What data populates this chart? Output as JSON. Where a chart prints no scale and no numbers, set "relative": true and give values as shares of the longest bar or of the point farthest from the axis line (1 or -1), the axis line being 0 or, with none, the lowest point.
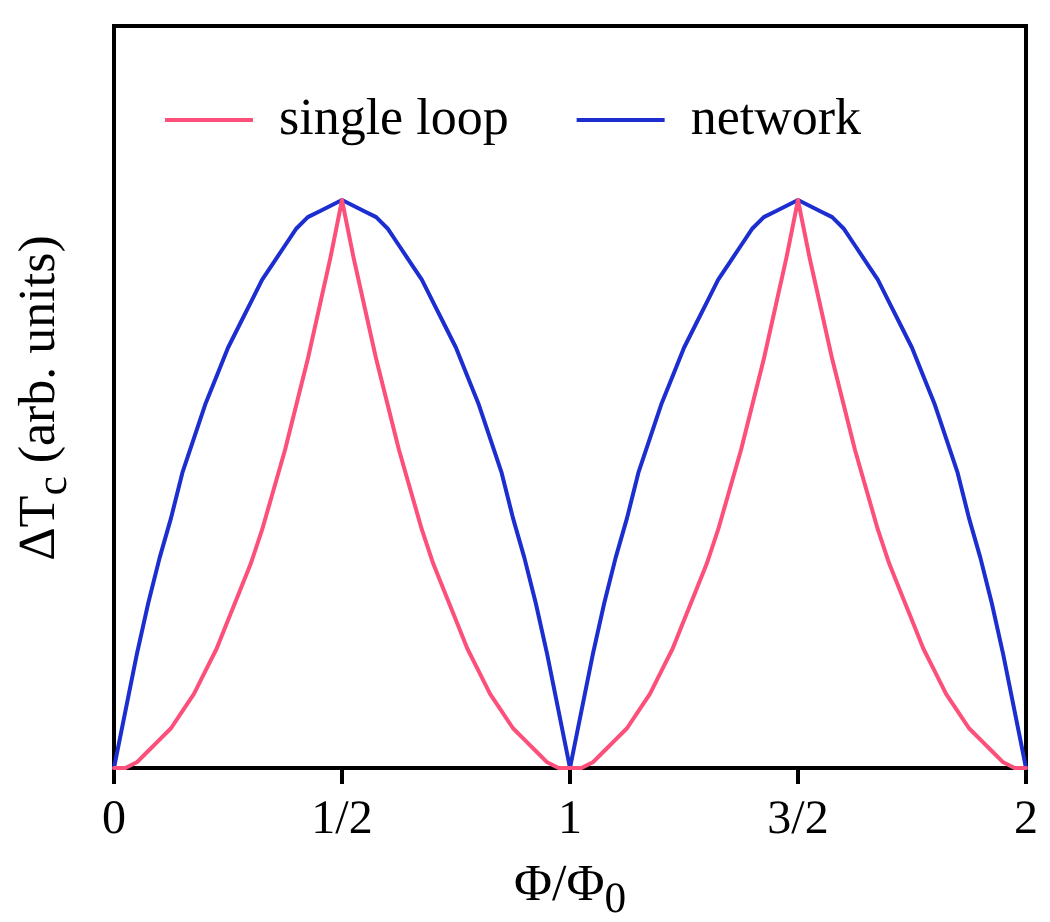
{
  "chart_data": {
    "type": "line",
    "xlabel": "Φ/Φ$_{0}$",
    "ylabel": "ΔT$_{c}$ (arb. units)",
    "relative": true,
    "x": [
      0,
      0.025,
      0.05,
      0.075,
      0.1,
      0.125,
      0.15,
      0.175,
      0.2,
      0.225,
      0.25,
      0.275,
      0.3,
      0.325,
      0.35,
      0.375,
      0.4,
      0.425,
      0.45,
      0.475,
      0.5,
      0.525,
      0.55,
      0.575,
      0.6,
      0.625,
      0.65,
      0.675,
      0.7,
      0.725,
      0.75,
      0.775,
      0.8,
      0.825,
      0.85,
      0.875,
      0.9,
      0.925,
      0.95,
      0.975,
      1,
      1.025,
      1.05,
      1.075,
      1.1,
      1.125,
      1.15,
      1.175,
      1.2,
      1.225,
      1.25,
      1.275,
      1.3,
      1.325,
      1.35,
      1.375,
      1.4,
      1.425,
      1.45,
      1.475,
      1.5,
      1.525,
      1.55,
      1.575,
      1.6,
      1.625,
      1.65,
      1.675,
      1.7,
      1.725,
      1.75,
      1.775,
      1.8,
      1.825,
      1.85,
      1.875,
      1.9,
      1.925,
      1.95,
      1.975,
      2
    ],
    "xlim": [
      0,
      2
    ],
    "xticks": [
      0,
      {
        "value": 0.5,
        "label": "1/2"
      },
      1,
      {
        "value": 1.5,
        "label": "3/2"
      },
      2
    ],
    "series": [
      {
        "name": "single loop",
        "color": "#fc4f7a",
        "values": [
          0,
          0,
          0.01,
          0.03,
          0.05,
          0.07,
          0.1,
          0.13,
          0.17,
          0.21,
          0.26,
          0.31,
          0.36,
          0.42,
          0.49,
          0.56,
          0.64,
          0.72,
          0.81,
          0.9,
          1,
          0.9,
          0.81,
          0.72,
          0.64,
          0.56,
          0.49,
          0.42,
          0.36,
          0.31,
          0.26,
          0.21,
          0.17,
          0.13,
          0.1,
          0.07,
          0.05,
          0.03,
          0.01,
          0,
          0,
          0,
          0.01,
          0.03,
          0.05,
          0.07,
          0.1,
          0.13,
          0.17,
          0.21,
          0.26,
          0.31,
          0.36,
          0.42,
          0.49,
          0.56,
          0.64,
          0.72,
          0.81,
          0.9,
          1,
          0.9,
          0.81,
          0.72,
          0.64,
          0.56,
          0.49,
          0.42,
          0.36,
          0.31,
          0.26,
          0.21,
          0.17,
          0.13,
          0.1,
          0.07,
          0.05,
          0.03,
          0.01,
          0,
          0
        ]
      },
      {
        "name": "network",
        "color": "#1c2ed0",
        "values": [
          0,
          0.1,
          0.2,
          0.29,
          0.37,
          0.44,
          0.52,
          0.58,
          0.64,
          0.69,
          0.74,
          0.78,
          0.82,
          0.86,
          0.89,
          0.92,
          0.95,
          0.97,
          0.98,
          0.99,
          1,
          0.99,
          0.98,
          0.97,
          0.95,
          0.92,
          0.89,
          0.86,
          0.82,
          0.78,
          0.74,
          0.69,
          0.64,
          0.58,
          0.52,
          0.44,
          0.37,
          0.29,
          0.2,
          0.1,
          0,
          0.1,
          0.2,
          0.29,
          0.37,
          0.44,
          0.52,
          0.58,
          0.64,
          0.69,
          0.74,
          0.78,
          0.82,
          0.86,
          0.89,
          0.92,
          0.95,
          0.97,
          0.98,
          0.99,
          1,
          0.99,
          0.98,
          0.97,
          0.95,
          0.92,
          0.89,
          0.86,
          0.82,
          0.78,
          0.74,
          0.69,
          0.64,
          0.58,
          0.52,
          0.44,
          0.37,
          0.29,
          0.2,
          0.1,
          0
        ]
      }
    ],
    "legend": "top",
    "marker": "none",
    "line_style": "solid"
  }
}
